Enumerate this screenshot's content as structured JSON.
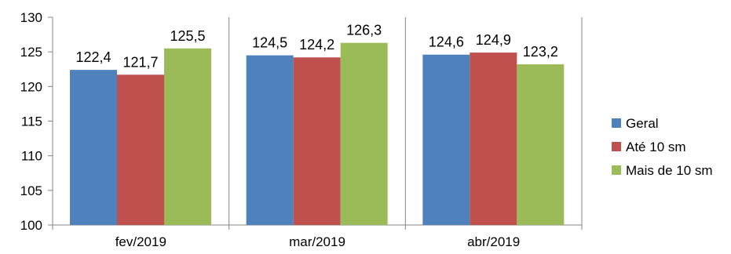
{
  "chart_data": {
    "type": "bar",
    "categories": [
      "fev/2019",
      "mar/2019",
      "abr/2019"
    ],
    "series": [
      {
        "name": "Geral",
        "values": [
          122.4,
          124.5,
          124.6
        ],
        "color": "#4F81BD",
        "labels": [
          "122,4",
          "124,5",
          "124,6"
        ]
      },
      {
        "name": "Até 10 sm",
        "values": [
          121.7,
          124.2,
          124.9
        ],
        "color": "#C0504D",
        "labels": [
          "121,7",
          "124,2",
          "124,9"
        ]
      },
      {
        "name": "Mais de 10 sm",
        "values": [
          125.5,
          126.3,
          123.2
        ],
        "color": "#9BBB59",
        "labels": [
          "125,5",
          "126,3",
          "123,2"
        ]
      }
    ],
    "yticks": [
      100,
      105,
      110,
      115,
      120,
      125,
      130
    ],
    "ylim": [
      100,
      130
    ],
    "legend_position": "right",
    "grid": false,
    "category_separators": true
  }
}
